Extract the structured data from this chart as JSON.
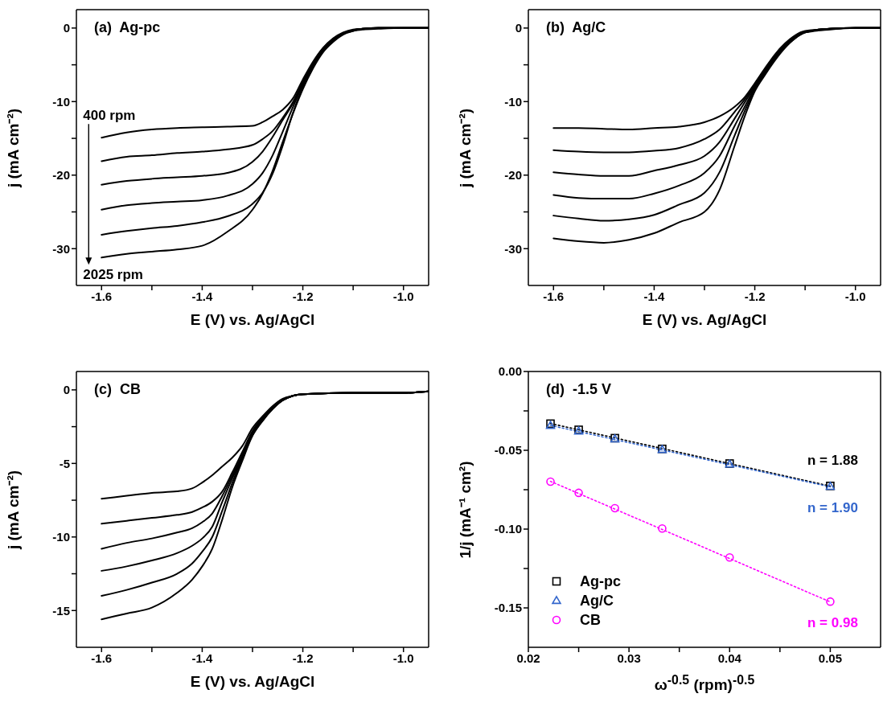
{
  "chart_data": [
    {
      "type": "line",
      "xlabel": "E (V) vs. Ag/AgCl",
      "ylabel": "j (mA cm⁻²)",
      "annotations": [
        "(a)  Ag-pc",
        "400 rpm",
        "2025 rpm"
      ],
      "xlim": [
        -1.65,
        -0.95
      ],
      "xticks": [
        -1.6,
        {
          "value": -1.5,
          "label": null
        },
        -1.4,
        {
          "value": -1.3,
          "label": null
        },
        -1.2,
        {
          "value": -1.1,
          "label": null
        },
        {
          "value": -1,
          "label": "-1.0"
        }
      ],
      "ylim": [
        -35,
        2.5
      ],
      "yticks": [
        0,
        {
          "value": -5,
          "label": null
        },
        -10,
        {
          "value": -15,
          "label": null
        },
        -20,
        {
          "value": -25,
          "label": null
        },
        -30
      ],
      "x": [
        -1.6,
        -1.55,
        -1.5,
        -1.45,
        -1.4,
        -1.35,
        -1.3,
        -1.28,
        -1.26,
        -1.24,
        -1.22,
        -1.2,
        -1.18,
        -1.16,
        -1.14,
        -1.12,
        -1.1,
        -1.08,
        -1.05,
        -1.0,
        -0.95
      ],
      "series": [
        {
          "color": "#000000",
          "values": [
            -14.9,
            -14.2,
            -13.8,
            -13.6,
            -13.5,
            -13.4,
            -13.3,
            -12.8,
            -12.0,
            -11.1,
            -9.6,
            -7.0,
            -4.6,
            -2.7,
            -1.4,
            -0.6,
            -0.2,
            -0.1,
            0,
            0,
            0
          ]
        },
        {
          "color": "#000000",
          "values": [
            -18.1,
            -17.5,
            -17.3,
            -17.0,
            -16.8,
            -16.5,
            -15.9,
            -15.1,
            -14.0,
            -12.2,
            -10.1,
            -7.3,
            -4.8,
            -2.8,
            -1.5,
            -0.7,
            -0.3,
            -0.1,
            0,
            0,
            0
          ]
        },
        {
          "color": "#000000",
          "values": [
            -21.3,
            -20.8,
            -20.5,
            -20.3,
            -20.1,
            -19.7,
            -18.2,
            -16.8,
            -14.8,
            -12.5,
            -10.3,
            -7.5,
            -5.0,
            -3.0,
            -1.6,
            -0.7,
            -0.3,
            -0.1,
            0,
            0,
            0
          ]
        },
        {
          "color": "#000000",
          "values": [
            -24.7,
            -24.1,
            -23.8,
            -23.6,
            -23.4,
            -22.8,
            -21.2,
            -19.7,
            -17.3,
            -14.1,
            -10.8,
            -7.7,
            -5.1,
            -3.1,
            -1.7,
            -0.8,
            -0.3,
            -0.1,
            0,
            0,
            0
          ]
        },
        {
          "color": "#000000",
          "values": [
            -28.1,
            -27.6,
            -27.2,
            -26.9,
            -26.4,
            -25.6,
            -23.9,
            -22.4,
            -19.8,
            -16.0,
            -11.6,
            -8.0,
            -5.3,
            -3.2,
            -1.8,
            -0.8,
            -0.4,
            -0.1,
            0,
            0,
            0
          ]
        },
        {
          "color": "#000000",
          "values": [
            -31.2,
            -30.7,
            -30.4,
            -30.1,
            -29.6,
            -27.7,
            -24.7,
            -22.5,
            -19.4,
            -15.5,
            -11.7,
            -8.3,
            -5.5,
            -3.3,
            -1.9,
            -0.9,
            -0.4,
            -0.2,
            -0.1,
            0,
            0
          ]
        }
      ]
    },
    {
      "type": "line",
      "xlabel": "E (V) vs. Ag/AgCl",
      "ylabel": "j (mA cm⁻²)",
      "annotations": [
        "(b)  Ag/C"
      ],
      "xlim": [
        -1.65,
        -0.95
      ],
      "xticks": [
        -1.6,
        {
          "value": -1.5,
          "label": null
        },
        -1.4,
        {
          "value": -1.3,
          "label": null
        },
        -1.2,
        {
          "value": -1.1,
          "label": null
        },
        {
          "value": -1,
          "label": "-1.0"
        }
      ],
      "ylim": [
        -35,
        2.5
      ],
      "yticks": [
        0,
        {
          "value": -5,
          "label": null
        },
        -10,
        {
          "value": -15,
          "label": null
        },
        -20,
        {
          "value": -25,
          "label": null
        },
        -30
      ],
      "x": [
        -1.6,
        -1.55,
        -1.5,
        -1.45,
        -1.4,
        -1.35,
        -1.3,
        -1.27,
        -1.24,
        -1.22,
        -1.2,
        -1.18,
        -1.16,
        -1.14,
        -1.12,
        -1.1,
        -1.05,
        -1.0,
        -0.95
      ],
      "series": [
        {
          "color": "#000000",
          "values": [
            -13.6,
            -13.6,
            -13.7,
            -13.8,
            -13.6,
            -13.4,
            -12.8,
            -12.0,
            -10.7,
            -9.4,
            -7.5,
            -5.5,
            -3.6,
            -2.1,
            -1.0,
            -0.4,
            -0.1,
            0,
            0
          ]
        },
        {
          "color": "#000000",
          "values": [
            -16.6,
            -16.8,
            -16.9,
            -16.9,
            -16.7,
            -16.3,
            -15.1,
            -13.8,
            -11.4,
            -9.7,
            -7.7,
            -5.7,
            -3.8,
            -2.3,
            -1.1,
            -0.5,
            -0.1,
            0,
            0
          ]
        },
        {
          "color": "#000000",
          "values": [
            -19.6,
            -19.9,
            -20.1,
            -20.1,
            -19.4,
            -18.6,
            -17.4,
            -15.5,
            -12.3,
            -10.1,
            -7.9,
            -5.9,
            -4.0,
            -2.4,
            -1.2,
            -0.5,
            -0.1,
            0,
            0
          ]
        },
        {
          "color": "#000000",
          "values": [
            -22.7,
            -23.1,
            -23.2,
            -23.2,
            -22.5,
            -21.4,
            -19.7,
            -17.4,
            -13.3,
            -10.7,
            -8.1,
            -6.0,
            -4.1,
            -2.5,
            -1.3,
            -0.6,
            -0.1,
            0,
            0
          ]
        },
        {
          "color": "#000000",
          "values": [
            -25.5,
            -25.9,
            -26.2,
            -26.0,
            -25.4,
            -24.0,
            -22.4,
            -19.6,
            -14.6,
            -11.3,
            -8.3,
            -6.2,
            -4.2,
            -2.6,
            -1.4,
            -0.6,
            -0.1,
            0,
            0
          ]
        },
        {
          "color": "#000000",
          "values": [
            -28.6,
            -29.0,
            -29.2,
            -28.8,
            -27.9,
            -26.4,
            -25.0,
            -22.0,
            -16.0,
            -12.0,
            -8.6,
            -6.4,
            -4.4,
            -2.7,
            -1.4,
            -0.6,
            -0.2,
            0,
            0
          ]
        }
      ]
    },
    {
      "type": "line",
      "xlabel": "E (V) vs. Ag/AgCl",
      "ylabel": "j (mA cm⁻²)",
      "annotations": [
        "(c)  CB"
      ],
      "xlim": [
        -1.65,
        -0.95
      ],
      "xticks": [
        -1.6,
        {
          "value": -1.5,
          "label": null
        },
        -1.4,
        {
          "value": -1.3,
          "label": null
        },
        -1.2,
        {
          "value": -1.1,
          "label": null
        },
        {
          "value": -1,
          "label": "-1.0"
        }
      ],
      "ylim": [
        -17.5,
        1.25
      ],
      "yticks": [
        0,
        {
          "value": -2.5,
          "label": null
        },
        -5,
        {
          "value": -7.5,
          "label": null
        },
        -10,
        {
          "value": -12.5,
          "label": null
        },
        -15
      ],
      "x": [
        -1.6,
        -1.55,
        -1.5,
        -1.45,
        -1.42,
        -1.4,
        -1.38,
        -1.36,
        -1.34,
        -1.32,
        -1.3,
        -1.28,
        -1.26,
        -1.24,
        -1.22,
        -1.2,
        -1.1,
        -1.0,
        -0.95
      ],
      "series": [
        {
          "color": "#000000",
          "values": [
            -7.4,
            -7.2,
            -7.0,
            -6.9,
            -6.7,
            -6.3,
            -5.8,
            -5.2,
            -4.6,
            -3.8,
            -2.6,
            -1.8,
            -1.1,
            -0.6,
            -0.4,
            -0.3,
            -0.2,
            -0.2,
            -0.1
          ]
        },
        {
          "color": "#000000",
          "values": [
            -9.1,
            -8.9,
            -8.7,
            -8.5,
            -8.3,
            -8.0,
            -7.6,
            -6.9,
            -5.6,
            -4.2,
            -2.8,
            -1.9,
            -1.2,
            -0.7,
            -0.4,
            -0.3,
            -0.2,
            -0.2,
            -0.1
          ]
        },
        {
          "color": "#000000",
          "values": [
            -10.8,
            -10.4,
            -10.1,
            -9.7,
            -9.4,
            -9.0,
            -8.4,
            -7.2,
            -5.8,
            -4.4,
            -2.9,
            -2.0,
            -1.2,
            -0.7,
            -0.4,
            -0.3,
            -0.2,
            -0.2,
            -0.1
          ]
        },
        {
          "color": "#000000",
          "values": [
            -12.3,
            -12.0,
            -11.6,
            -11.1,
            -10.6,
            -10.1,
            -9.3,
            -7.6,
            -6.0,
            -4.5,
            -3.0,
            -2.0,
            -1.2,
            -0.7,
            -0.4,
            -0.3,
            -0.2,
            -0.2,
            -0.1
          ]
        },
        {
          "color": "#000000",
          "values": [
            -14.0,
            -13.6,
            -13.1,
            -12.5,
            -11.8,
            -11.0,
            -10.0,
            -8.2,
            -6.3,
            -4.6,
            -3.1,
            -2.1,
            -1.3,
            -0.7,
            -0.4,
            -0.3,
            -0.2,
            -0.2,
            -0.1
          ]
        },
        {
          "color": "#000000",
          "values": [
            -15.6,
            -15.2,
            -14.8,
            -13.8,
            -12.9,
            -12.0,
            -10.8,
            -8.8,
            -6.6,
            -4.8,
            -3.1,
            -2.1,
            -1.3,
            -0.7,
            -0.4,
            -0.3,
            -0.2,
            -0.2,
            -0.1
          ]
        }
      ]
    },
    {
      "type": "scatter",
      "xlabel": "ω$^{-0.5}$ (rpm)$^{-0.5}$",
      "ylabel": "1/j (mA⁻¹ cm²)",
      "legend": "bottom left",
      "annotations": [
        "(d)  -1.5 V",
        "n = 1.88",
        "n = 1.90",
        "n = 0.98"
      ],
      "xlim": [
        0.02,
        0.055
      ],
      "xticks": [
        0.02,
        {
          "value": 0.025,
          "label": null
        },
        0.03,
        {
          "value": 0.035,
          "label": null
        },
        0.04,
        {
          "value": 0.045,
          "label": null
        },
        0.05
      ],
      "ylim": [
        -0.175,
        0
      ],
      "yticks": [
        {
          "value": 0,
          "label": "0.00"
        },
        {
          "value": -0.025,
          "label": null
        },
        -0.05,
        {
          "value": -0.075,
          "label": null
        },
        {
          "value": -0.1,
          "label": "-0.10"
        },
        {
          "value": -0.125,
          "label": null
        },
        -0.15
      ],
      "series": [
        {
          "name": "Ag-pc",
          "marker": "square",
          "color": "#000000",
          "x": [
            0.0222,
            0.025,
            0.0286,
            0.0333,
            0.04,
            0.05
          ],
          "values": [
            -0.0331,
            -0.037,
            -0.0423,
            -0.0491,
            -0.0584,
            -0.0726
          ]
        },
        {
          "name": "Ag/C",
          "marker": "triangle",
          "color": "#3366cc",
          "x": [
            0.0222,
            0.025,
            0.0286,
            0.0333,
            0.04,
            0.05
          ],
          "values": [
            -0.0343,
            -0.0379,
            -0.0429,
            -0.0496,
            -0.0589,
            -0.073
          ]
        },
        {
          "name": "CB",
          "marker": "circle",
          "color": "#ff00ff",
          "x": [
            0.0222,
            0.025,
            0.0286,
            0.0333,
            0.04,
            0.05
          ],
          "values": [
            -0.0699,
            -0.077,
            -0.0867,
            -0.0996,
            -0.118,
            -0.146
          ]
        },
        {
          "type": "line",
          "line_style": "dotted",
          "color": "#000000",
          "x": [
            0.0222,
            0.05
          ],
          "values": [
            -0.033,
            -0.0727
          ]
        },
        {
          "type": "line",
          "line_style": "dotted",
          "color": "#3366cc",
          "x": [
            0.0222,
            0.05
          ],
          "values": [
            -0.0342,
            -0.0732
          ]
        },
        {
          "type": "line",
          "line_style": "dotted",
          "color": "#ff00ff",
          "x": [
            0.0222,
            0.05
          ],
          "values": [
            -0.0697,
            -0.1462
          ]
        }
      ]
    }
  ]
}
